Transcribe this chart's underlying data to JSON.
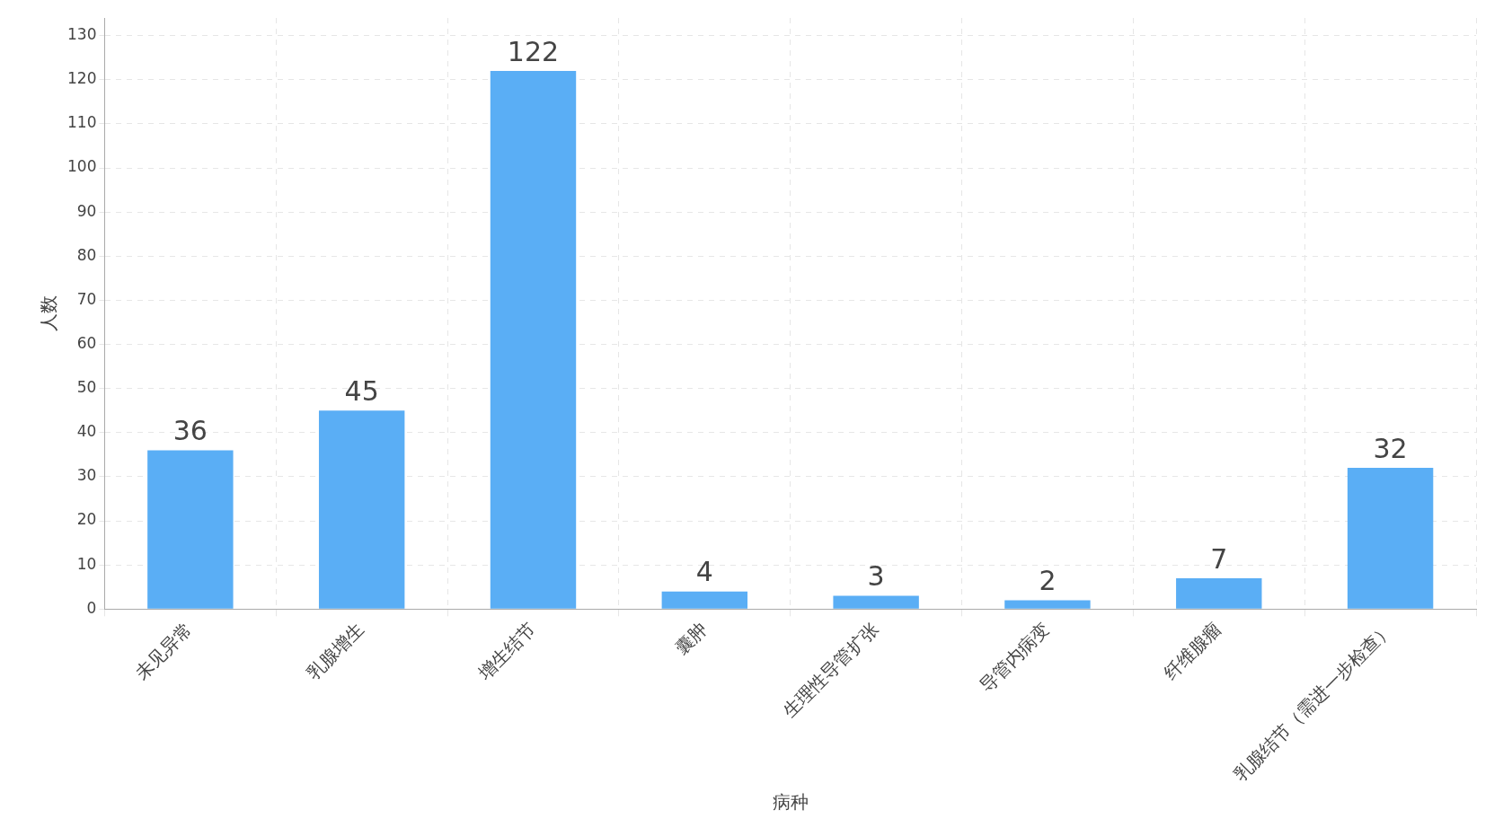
{
  "chart_data": {
    "type": "bar",
    "xlabel": "病种",
    "ylabel": "人数",
    "categories": [
      "未见异常",
      "乳腺增生",
      "增生结节",
      "囊肿",
      "生理性导管扩张",
      "导管内病变",
      "纤维腺瘤",
      "乳腺结节（需进一步检查）"
    ],
    "values": [
      36,
      45,
      122,
      4,
      3,
      2,
      7,
      32
    ],
    "color": "#5aaef5",
    "ylim": [
      0,
      134
    ],
    "yticks": [
      0,
      10,
      20,
      30,
      40,
      50,
      60,
      70,
      80,
      90,
      100,
      110,
      120,
      130
    ],
    "grid": true,
    "data_labels": true,
    "legend": false
  }
}
